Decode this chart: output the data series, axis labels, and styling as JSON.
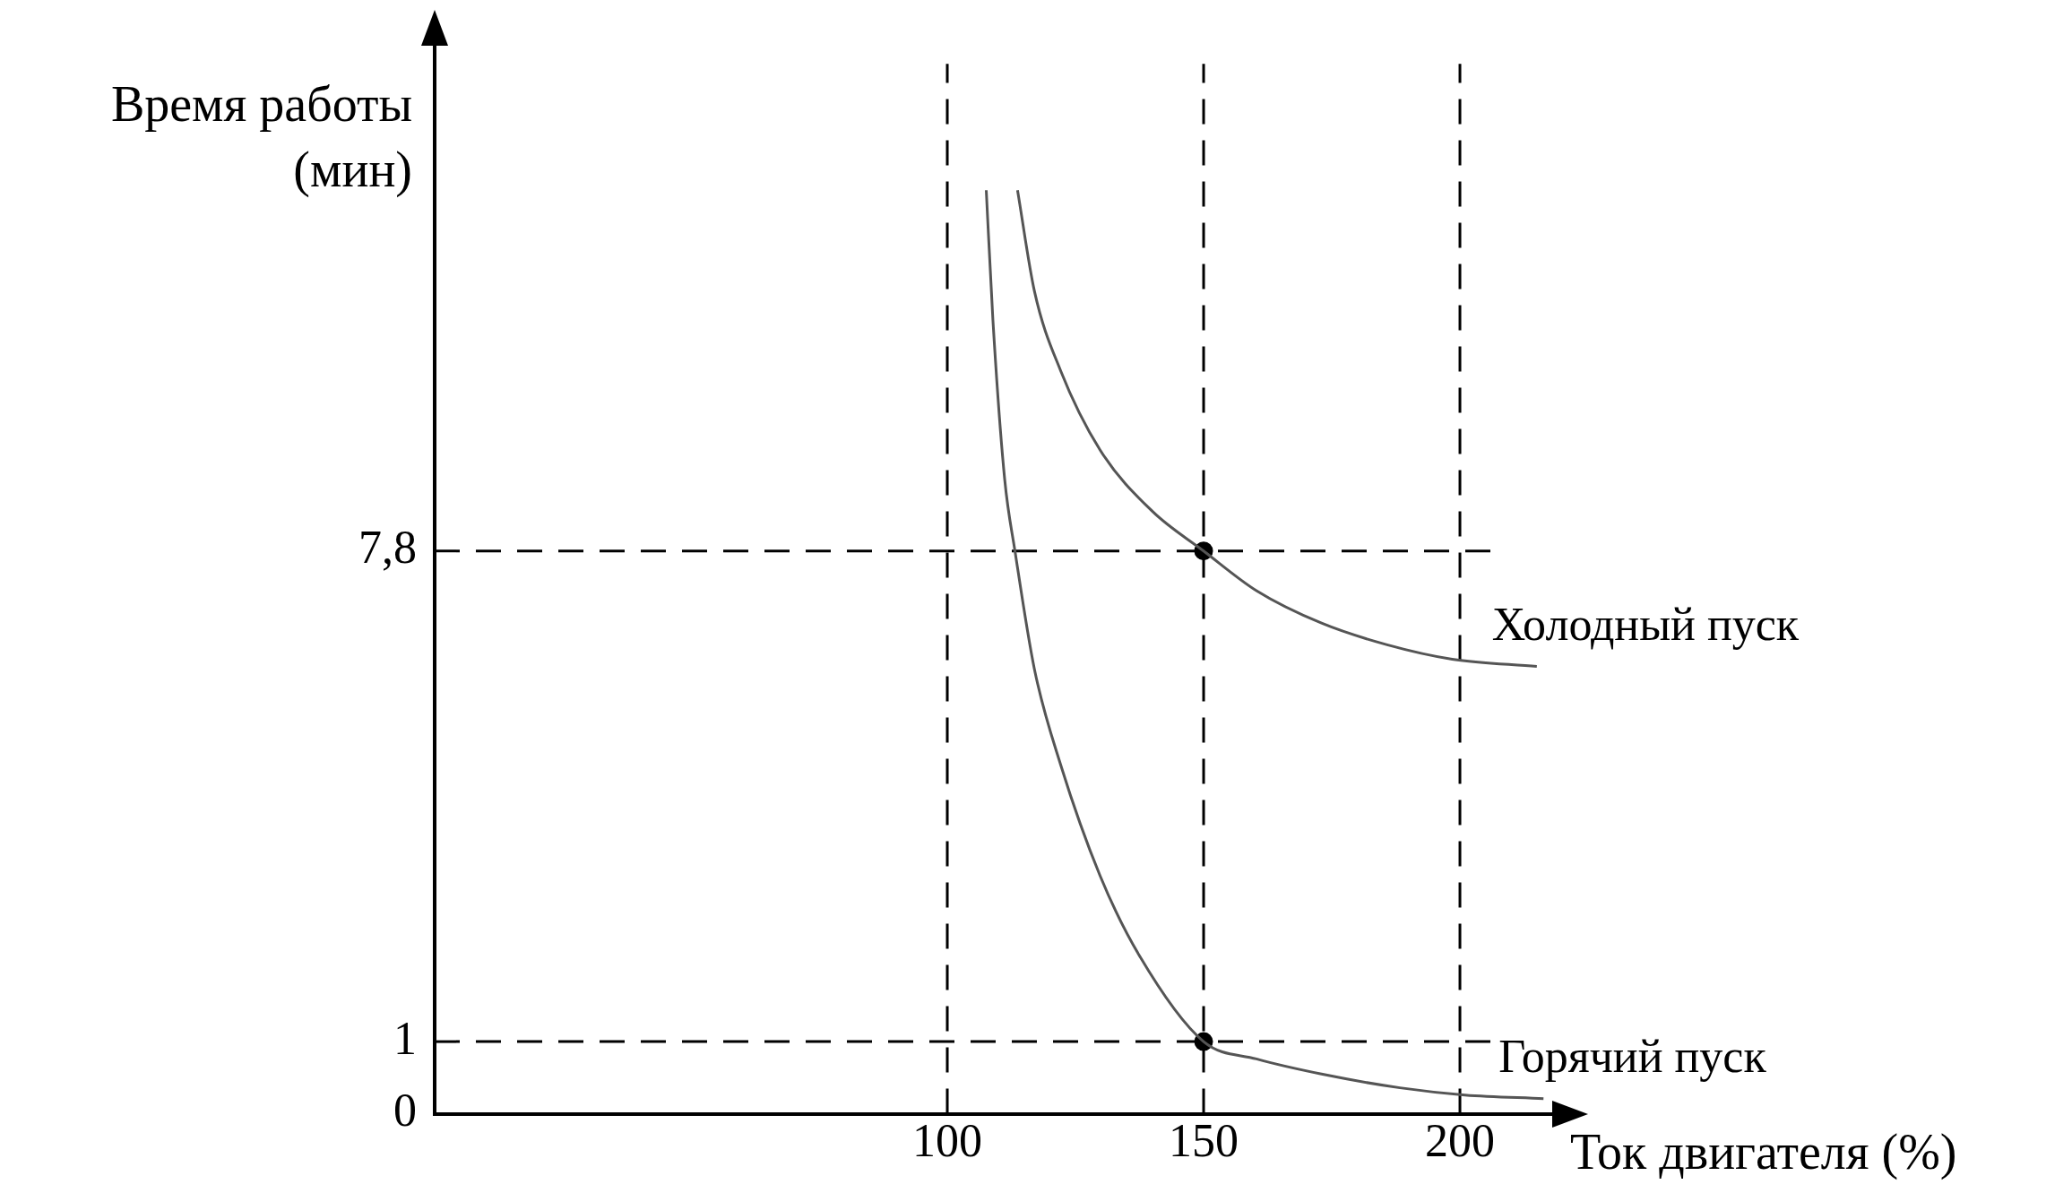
{
  "chart_data": {
    "type": "line",
    "xlabel": "Ток двигателя (%)",
    "ylabel": "Время работы (мин)",
    "xlim": [
      0,
      218
    ],
    "xticks": [
      100,
      150,
      200
    ],
    "ylim": [
      0,
      14.8
    ],
    "yticks": [
      0,
      1,
      {
        "value": 7.8,
        "label": "7,8"
      }
    ],
    "grid": false,
    "legend": false,
    "marker": "none",
    "line_style": "solid",
    "series": [
      {
        "name": "Холодный пуск",
        "color": "#555555",
        "x": [
          113.7,
          117,
          122.1,
          129.8,
          140,
          150,
          160.3,
          173,
          185.8,
          198.5,
          215
        ],
        "values": [
          12.8,
          11.4,
          10.3,
          9.2,
          8.35,
          7.8,
          7.25,
          6.8,
          6.5,
          6.3,
          6.2
        ]
      },
      {
        "name": "Горячий пуск",
        "color": "#555555",
        "x": [
          107.6,
          108.9,
          111.2,
          113.2,
          117,
          122.1,
          129.8,
          137.4,
          150,
          160.3,
          173,
          188.3,
          201,
          216.3
        ],
        "values": [
          12.8,
          11,
          8.79,
          7.8,
          6.16,
          4.84,
          3.3,
          2.2,
          1,
          0.76,
          0.55,
          0.36,
          0.26,
          0.21
        ]
      },
      {
        "type": "scatter",
        "marker": "circle",
        "color": "#000000",
        "x": [
          150,
          150
        ],
        "values": [
          7.8,
          1
        ]
      }
    ],
    "ref_lines": [
      {
        "axis": "x",
        "value": 100,
        "color": "#000000",
        "line_style": "dashed"
      },
      {
        "axis": "x",
        "value": 150,
        "color": "#000000",
        "line_style": "dashed"
      },
      {
        "axis": "x",
        "value": 200,
        "color": "#000000",
        "line_style": "dashed"
      },
      {
        "axis": "y",
        "value": 7.8,
        "color": "#000000",
        "line_style": "dashed"
      },
      {
        "axis": "y",
        "value": 1,
        "color": "#000000",
        "line_style": "dashed"
      }
    ]
  }
}
